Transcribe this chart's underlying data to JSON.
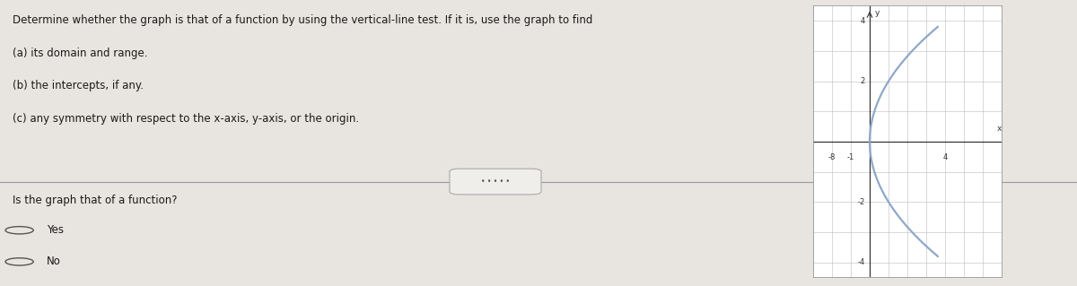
{
  "background_color": "#e8e4df",
  "text_color": "#1a1a1a",
  "main_text_lines": [
    "Determine whether the graph is that of a function by using the vertical-line test. If it is, use the graph to find",
    "(a) its domain and range.",
    "(b) the intercepts, if any.",
    "(c) any symmetry with respect to the x-axis, y-axis, or the origin."
  ],
  "question_text": "Is the graph that of a function?",
  "option_yes": "Yes",
  "option_no": "No",
  "divider_dots": "• • • • •",
  "graph_bg": "#ffffff",
  "curve_color": "#8fa8c8",
  "curve_linewidth": 1.6,
  "grid_color": "#bbbbbb",
  "axis_color": "#333333",
  "graph_fontsize": 6.5,
  "graph_xlim": [
    -3,
    7
  ],
  "graph_ylim": [
    -4.5,
    4.5
  ]
}
